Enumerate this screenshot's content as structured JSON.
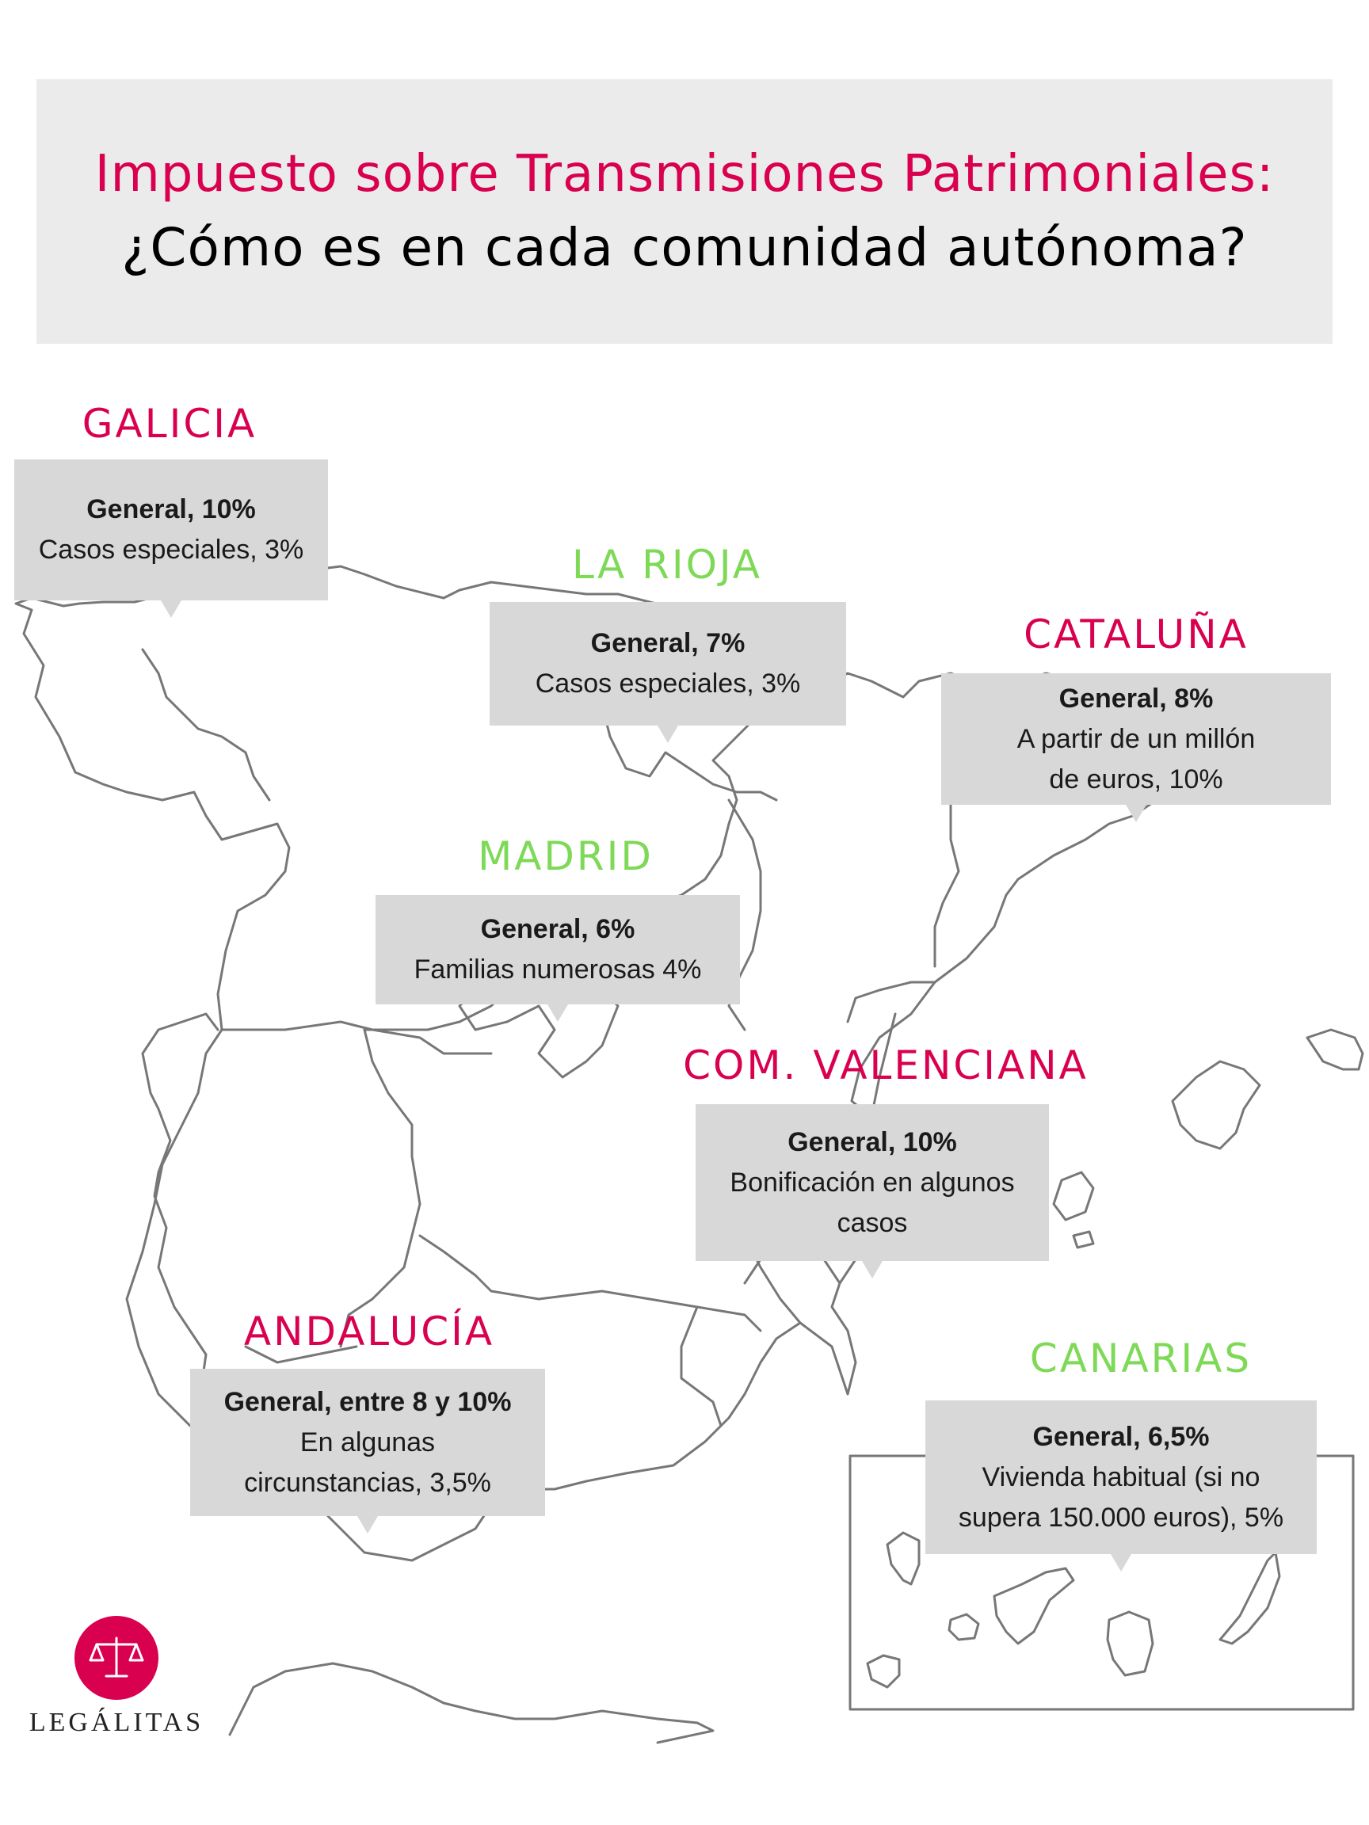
{
  "header": {
    "title_line1": "Impuesto sobre Transmisiones Patrimoniales:",
    "title_line2": "¿Cómo es en cada comunidad autónoma?"
  },
  "colors": {
    "accent_pink": "#d9004f",
    "accent_green": "#7ed957",
    "card_background": "#d8d8d8",
    "header_background": "#ebebeb",
    "map_outline": "#777777"
  },
  "regions": {
    "galicia": {
      "name": "GALICIA",
      "line1": "General, 10%",
      "line2": "Casos especiales, 3%"
    },
    "la_rioja": {
      "name": "LA RIOJA",
      "line1": "General, 7%",
      "line2": "Casos especiales, 3%"
    },
    "cataluna": {
      "name": "CATALUÑA",
      "line1": "General, 8%",
      "line2": "A partir de un millón",
      "line3": "de euros, 10%"
    },
    "madrid": {
      "name": "MADRID",
      "line1": "General, 6%",
      "line2": "Familias numerosas 4%"
    },
    "valenciana": {
      "name": "COM. VALENCIANA",
      "line1": "General, 10%",
      "line2": "Bonificación en algunos",
      "line3": "casos"
    },
    "andalucia": {
      "name": "ANDALUCÍA",
      "line1": "General, entre 8 y 10%",
      "line2": "En algunas",
      "line3": "circunstancias, 3,5%"
    },
    "canarias": {
      "name": "CANARIAS",
      "line1": "General, 6,5%",
      "line2": "Vivienda habitual (si no",
      "line3": "supera 150.000 euros), 5%"
    }
  },
  "logo": {
    "icon": "scales-of-justice-icon",
    "text": "LEGÁLITAS"
  }
}
